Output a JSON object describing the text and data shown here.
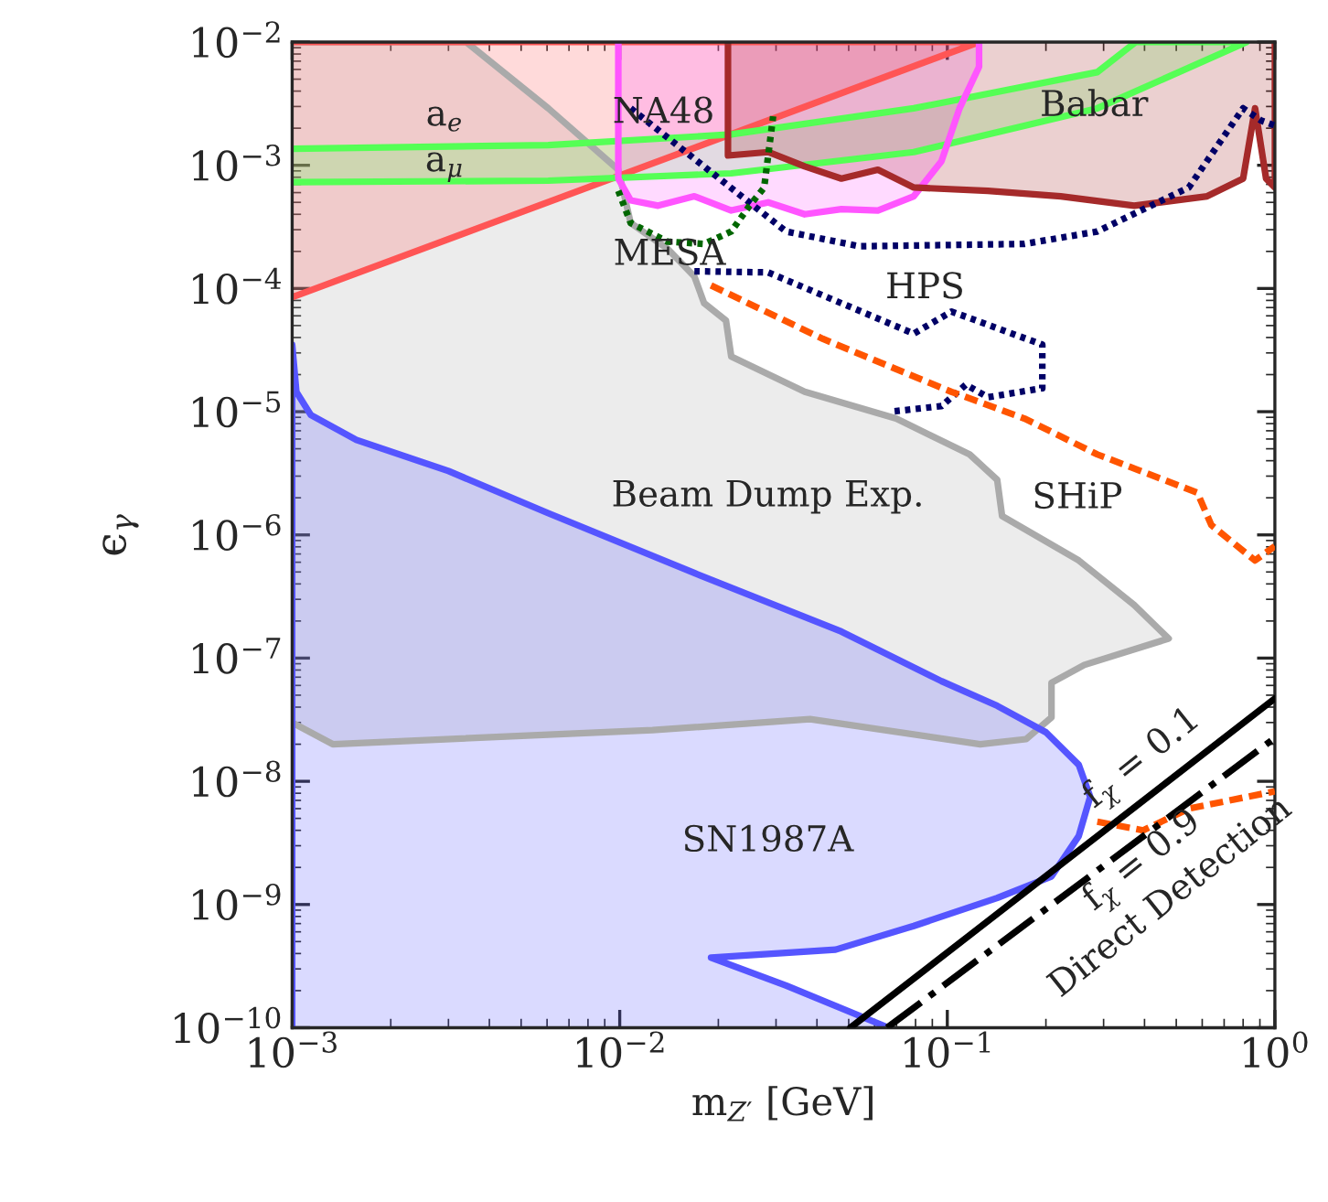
{
  "chart_data": {
    "type": "line",
    "xlabel": "m$_{Z′}$ [GeV]",
    "ylabel": "ϵ$_{γ}$",
    "log": "xy",
    "grid": false,
    "marker": "none",
    "xlim": [
      0.001,
      1
    ],
    "ylim": [
      1e-10,
      0.01
    ],
    "xticks": [
      {
        "value": 0.001,
        "label": "10$^{−3}$"
      },
      {
        "value": 0.01,
        "label": "10$^{−2}$"
      },
      {
        "value": 0.1,
        "label": "10$^{−1}$"
      },
      {
        "value": 1,
        "label": "10$^{0}$"
      }
    ],
    "yticks": [
      {
        "value": 1e-10,
        "label": "10$^{−10}$"
      },
      {
        "value": 1e-09,
        "label": "10$^{−9}$"
      },
      {
        "value": 1e-08,
        "label": "10$^{−8}$"
      },
      {
        "value": 1e-07,
        "label": "10$^{−7}$"
      },
      {
        "value": 1e-06,
        "label": "10$^{−6}$"
      },
      {
        "value": 1e-05,
        "label": "10$^{−5}$"
      },
      {
        "value": 0.0001,
        "label": "10$^{−4}$"
      },
      {
        "value": 0.001,
        "label": "10$^{−3}$"
      },
      {
        "value": 0.01,
        "label": "10$^{−2}$"
      }
    ],
    "series": [
      {
        "type": "area",
        "color": "#aaaaaa",
        "line_style": "solid",
        "x": [
          0.001,
          0.0034,
          0.00605,
          0.0099,
          0.0108,
          0.014,
          0.0169,
          0.0181,
          0.0211,
          0.0219,
          0.0367,
          0.0698,
          0.117,
          0.142,
          0.147,
          0.252,
          0.372,
          0.474,
          0.262,
          0.208,
          0.208,
          0.174,
          0.126,
          0.0381,
          0.0126,
          0.00133,
          0.001
        ],
        "values": [
          0.01,
          0.01,
          0.0029,
          0.00092,
          0.00034,
          0.00021,
          0.000125,
          7.6e-05,
          5.5e-05,
          2.8e-05,
          1.45e-05,
          8.8e-06,
          4.5e-06,
          2.8e-06,
          1.42e-06,
          6.2e-07,
          2.7e-07,
          1.44e-07,
          8.8e-08,
          6.3e-08,
          3.3e-08,
          2.2e-08,
          2e-08,
          3.2e-08,
          2.6e-08,
          2e-08,
          3e-08
        ]
      },
      {
        "type": "area",
        "color": "#5555ff",
        "line_style": "solid",
        "x": [
          0.001,
          0.001,
          0.00103,
          0.00114,
          0.00157,
          0.003,
          0.00605,
          0.0169,
          0.0475,
          0.096,
          0.142,
          0.2,
          0.252,
          0.273,
          0.252,
          0.208,
          0.142,
          0.079,
          0.0456,
          0.019,
          0.0322,
          0.0662
        ],
        "values": [
          1e-10,
          3.5e-05,
          1.45e-05,
          9.4e-06,
          5.9e-06,
          3.3e-06,
          1.5e-06,
          4.9e-07,
          1.64e-07,
          6.5e-08,
          4.1e-08,
          2.5e-08,
          1.36e-08,
          7.5e-09,
          3.6e-09,
          1.69e-09,
          1.13e-09,
          6.7e-10,
          4.3e-10,
          3.7e-10,
          2.2e-10,
          1e-10
        ]
      },
      {
        "type": "area",
        "color": "#ff5555",
        "line_style": "solid",
        "x": [
          0.001,
          0.125,
          0.125,
          0.001
        ],
        "values": [
          8.5e-05,
          0.01,
          0.01,
          0.01
        ]
      },
      {
        "type": "area",
        "color": "#55ff55",
        "line_style": "solid",
        "x": [
          0.001,
          0.00605,
          0.0219,
          0.079,
          0.287,
          0.376,
          0.82,
          0.287,
          0.079,
          0.0219,
          0.00605,
          0.001
        ],
        "values": [
          0.00136,
          0.00146,
          0.00178,
          0.0029,
          0.0057,
          0.01,
          0.01,
          0.0029,
          0.00128,
          0.00086,
          0.00075,
          0.00073
        ]
      },
      {
        "type": "area",
        "color": "#ff55ff",
        "line_style": "solid",
        "x": [
          0.0099,
          0.0099,
          0.0108,
          0.0131,
          0.0169,
          0.0219,
          0.0284,
          0.0367,
          0.0475,
          0.0614,
          0.079,
          0.096,
          0.109,
          0.125,
          0.125
        ],
        "values": [
          0.01,
          0.00078,
          0.00052,
          0.00047,
          0.00056,
          0.00043,
          0.0005,
          0.0004,
          0.00044,
          0.00043,
          0.00056,
          0.00108,
          0.0029,
          0.0063,
          0.01
        ]
      },
      {
        "type": "area",
        "color": "#a52a2a",
        "line_style": "solid",
        "x": [
          0.0214,
          0.0214,
          0.0284,
          0.0367,
          0.0475,
          0.0614,
          0.079,
          0.133,
          0.222,
          0.372,
          0.621,
          0.8,
          0.87,
          0.94,
          1,
          1
        ],
        "values": [
          0.01,
          0.0012,
          0.00128,
          0.00098,
          0.00078,
          0.00092,
          0.00066,
          0.00062,
          0.00056,
          0.00047,
          0.00056,
          0.00078,
          0.0029,
          0.00078,
          0.00066,
          0.01
        ]
      },
      {
        "color": "#000066",
        "line_style": "dotted",
        "x": [
          0.0108,
          0.0322,
          0.054,
          0.172,
          0.287,
          0.546,
          0.8,
          0.91,
          1
        ],
        "values": [
          0.0029,
          0.00029,
          0.00022,
          0.00023,
          0.00029,
          0.00066,
          0.0029,
          0.0023,
          0.0021
        ]
      },
      {
        "color": "#000066",
        "line_style": "dotted",
        "x": [
          0.0169,
          0.0284,
          0.079,
          0.103,
          0.195,
          0.195,
          0.133,
          0.114,
          0.096,
          0.067
        ],
        "values": [
          0.000138,
          0.000135,
          4.3e-05,
          6.5e-05,
          3.5e-05,
          1.55e-05,
          1.31e-05,
          1.66e-05,
          1.11e-05,
          1e-05
        ]
      },
      {
        "color": "#006600",
        "line_style": "dotted",
        "x": [
          0.0099,
          0.0108,
          0.014,
          0.0181,
          0.0219,
          0.0249,
          0.0276,
          0.0294
        ],
        "values": [
          0.00062,
          0.00034,
          0.00024,
          0.00023,
          0.00029,
          0.00047,
          0.00066,
          0.0025
        ]
      },
      {
        "color": "#ff5500",
        "line_style": "dashed",
        "x": [
          0.019,
          0.0417,
          0.103,
          0.172,
          0.287,
          0.58,
          0.64,
          0.87,
          1
        ],
        "values": [
          0.000106,
          3.9e-05,
          1.45e-05,
          8.8e-06,
          4.5e-06,
          2.2e-06,
          1.2e-06,
          6.2e-07,
          8.1e-07
        ]
      },
      {
        "color": "#ff5500",
        "line_style": "dashed",
        "x": [
          0.287,
          0.396,
          0.546,
          1
        ],
        "values": [
          4.7e-09,
          4e-09,
          6e-09,
          8.3e-09
        ]
      },
      {
        "color": "#000000",
        "line_style": "solid",
        "x": [
          0.0506,
          1
        ],
        "values": [
          1e-10,
          4.7e-08
        ]
      },
      {
        "color": "#000000",
        "line_style": "dashdot",
        "x": [
          0.0655,
          1
        ],
        "values": [
          1e-10,
          2.25e-08
        ]
      }
    ],
    "annotations": [
      "a$_{e}$",
      "a$_{μ}$",
      "NA48",
      "Babar",
      "MESA",
      "HPS",
      "Beam Dump Exp.",
      "SHiP",
      "SN1987A",
      "f$_{χ}$ = 0.1",
      "f$_{χ}$ = 0.9",
      "Direct Detection"
    ]
  }
}
